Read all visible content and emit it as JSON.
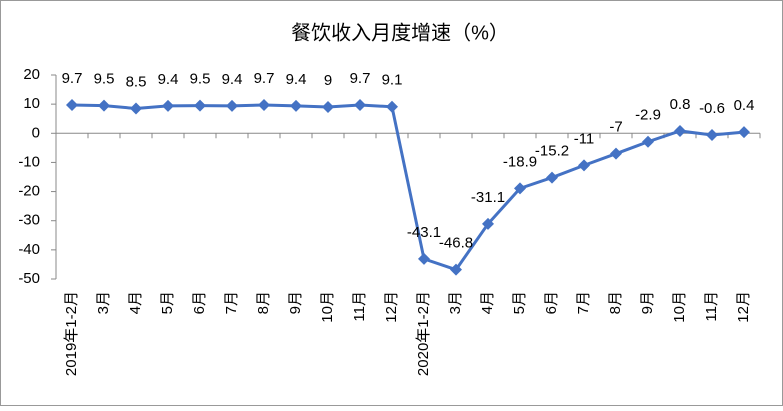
{
  "chart_data": {
    "type": "line",
    "title": "餐饮收入月度增速（%）",
    "categories": [
      "2019年1-2月",
      "3月",
      "4月",
      "5月",
      "6月",
      "7月",
      "8月",
      "9月",
      "10月",
      "11月",
      "12月",
      "2020年1-2月",
      "3月",
      "4月",
      "5月",
      "6月",
      "7月",
      "8月",
      "9月",
      "10月",
      "11月",
      "12月"
    ],
    "values": [
      9.7,
      9.5,
      8.5,
      9.4,
      9.5,
      9.4,
      9.7,
      9.4,
      9,
      9.7,
      9.1,
      -43.1,
      -46.8,
      -31.1,
      -18.9,
      -15.2,
      -11,
      -7,
      -2.9,
      0.8,
      -0.6,
      0.4
    ],
    "color": "#4472c4",
    "ylim": [
      -50,
      20
    ],
    "yticks": [
      -50,
      -40,
      -30,
      -20,
      -10,
      0,
      10,
      20
    ],
    "grid": false
  }
}
